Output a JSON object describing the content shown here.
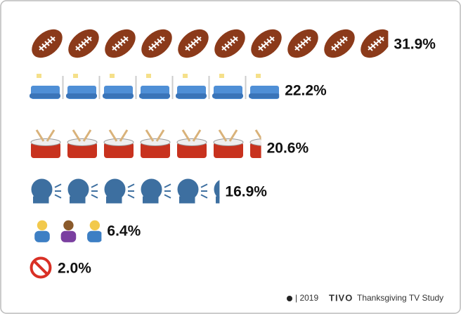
{
  "chart_data": {
    "type": "pictograph",
    "values": [
      31.9,
      22.2,
      20.6,
      16.9,
      6.4,
      2.0
    ],
    "value_labels": [
      "31.9%",
      "22.2%",
      "20.6%",
      "16.9%",
      "6.4%",
      "2.0%"
    ],
    "source": {
      "year": "| 2019",
      "brand": "TIVO",
      "title": "Thanksgiving TV Study"
    }
  }
}
